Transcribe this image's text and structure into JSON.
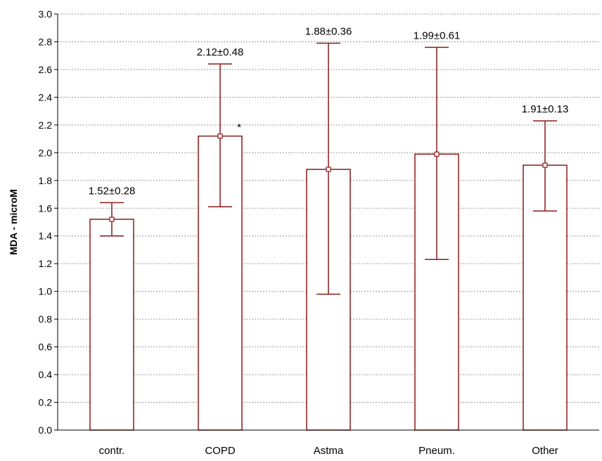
{
  "chart_data": {
    "type": "bar",
    "ylabel": "MDA - microM",
    "ylim": [
      0,
      3.0
    ],
    "y_ticks": [
      "0.0",
      "0.2",
      "0.4",
      "0.6",
      "0.8",
      "1.0",
      "1.2",
      "1.4",
      "1.6",
      "1.8",
      "2.0",
      "2.2",
      "2.4",
      "2.6",
      "2.8",
      "3.0"
    ],
    "grid": true,
    "categories": [
      "contr.",
      "COPD",
      "Astma",
      "Pneum.",
      "Other"
    ],
    "values": [
      1.52,
      2.12,
      1.88,
      1.99,
      1.91
    ],
    "error_low": [
      1.4,
      1.61,
      0.98,
      1.23,
      1.58
    ],
    "error_high": [
      1.64,
      2.64,
      2.79,
      2.76,
      2.23
    ],
    "data_labels": [
      "1.52±0.28",
      "2.12±0.48",
      "1.88±0.36",
      "1.99±0.61",
      "1.91±0.13"
    ],
    "annotations": [
      "",
      "*",
      "",
      "",
      ""
    ],
    "bar_color": "#ffffff",
    "line_color": "#8b1a1a"
  }
}
